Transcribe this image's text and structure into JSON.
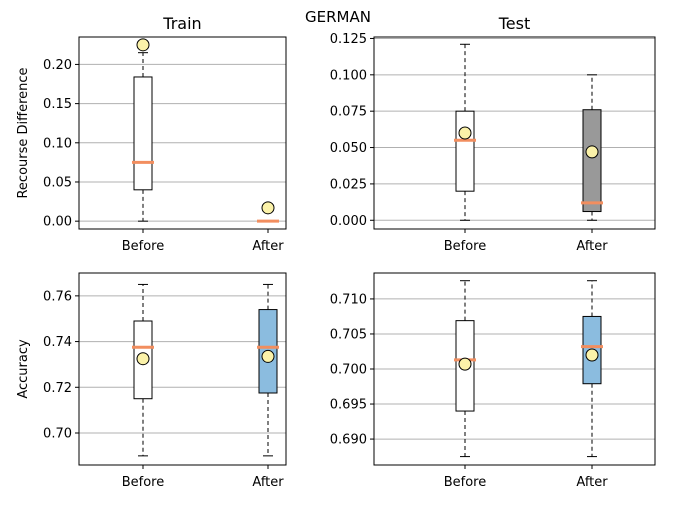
{
  "suptitle": "GERMAN",
  "colors": {
    "median": "#f28e5f",
    "mean_fill": "#fbf2a9",
    "grid": "#b0b0b0",
    "box_white": "#ffffff",
    "box_gray": "#999999",
    "box_blue": "#8bbcdf"
  },
  "chart_data": [
    {
      "type": "box",
      "panel": "top-left",
      "title": "Train",
      "ylabel": "Recourse Difference",
      "categories": [
        "Before",
        "After"
      ],
      "ylim": [
        -0.01,
        0.235
      ],
      "yticks": [
        0.0,
        0.05,
        0.1,
        0.15,
        0.2
      ],
      "ytick_labels": [
        "0.00",
        "0.05",
        "0.10",
        "0.15",
        "0.20"
      ],
      "grid": true,
      "boxes": [
        {
          "category": "Before",
          "whisker_low": 0.0,
          "q1": 0.04,
          "median": 0.075,
          "q3": 0.184,
          "whisker_high": 0.215,
          "mean": 0.225,
          "fill": "box_white"
        },
        {
          "category": "After",
          "whisker_low": 0.0,
          "q1": 0.0,
          "median": 0.0,
          "q3": 0.0,
          "whisker_high": 0.0,
          "mean": 0.017,
          "fill": "box_white"
        }
      ]
    },
    {
      "type": "box",
      "panel": "top-right",
      "title": "Test",
      "ylabel": "",
      "categories": [
        "Before",
        "After"
      ],
      "ylim": [
        -0.006,
        0.126
      ],
      "yticks": [
        0.0,
        0.025,
        0.05,
        0.075,
        0.1,
        0.125
      ],
      "ytick_labels": [
        "0.000",
        "0.025",
        "0.050",
        "0.075",
        "0.100",
        "0.125"
      ],
      "grid": true,
      "boxes": [
        {
          "category": "Before",
          "whisker_low": 0.0,
          "q1": 0.02,
          "median": 0.055,
          "q3": 0.075,
          "whisker_high": 0.121,
          "mean": 0.06,
          "fill": "box_white"
        },
        {
          "category": "After",
          "whisker_low": 0.0,
          "q1": 0.006,
          "median": 0.012,
          "q3": 0.076,
          "whisker_high": 0.1,
          "mean": 0.047,
          "fill": "box_gray"
        }
      ]
    },
    {
      "type": "box",
      "panel": "bottom-left",
      "title": "",
      "ylabel": "Accuracy",
      "categories": [
        "Before",
        "After"
      ],
      "ylim": [
        0.686,
        0.77
      ],
      "yticks": [
        0.7,
        0.72,
        0.74,
        0.76
      ],
      "ytick_labels": [
        "0.70",
        "0.72",
        "0.74",
        "0.76"
      ],
      "grid": true,
      "boxes": [
        {
          "category": "Before",
          "whisker_low": 0.69,
          "q1": 0.715,
          "median": 0.7375,
          "q3": 0.749,
          "whisker_high": 0.765,
          "mean": 0.7325,
          "fill": "box_white"
        },
        {
          "category": "After",
          "whisker_low": 0.69,
          "q1": 0.7175,
          "median": 0.7375,
          "q3": 0.754,
          "whisker_high": 0.765,
          "mean": 0.7335,
          "fill": "box_blue"
        }
      ]
    },
    {
      "type": "box",
      "panel": "bottom-right",
      "title": "",
      "ylabel": "",
      "categories": [
        "Before",
        "After"
      ],
      "ylim": [
        0.6863,
        0.7137
      ],
      "yticks": [
        0.69,
        0.695,
        0.7,
        0.705,
        0.71
      ],
      "ytick_labels": [
        "0.690",
        "0.695",
        "0.700",
        "0.705",
        "0.710"
      ],
      "grid": true,
      "boxes": [
        {
          "category": "Before",
          "whisker_low": 0.6875,
          "q1": 0.694,
          "median": 0.7013,
          "q3": 0.7069,
          "whisker_high": 0.7126,
          "mean": 0.7007,
          "fill": "box_white"
        },
        {
          "category": "After",
          "whisker_low": 0.6875,
          "q1": 0.6979,
          "median": 0.7032,
          "q3": 0.7075,
          "whisker_high": 0.7126,
          "mean": 0.702,
          "fill": "box_blue"
        }
      ]
    }
  ]
}
